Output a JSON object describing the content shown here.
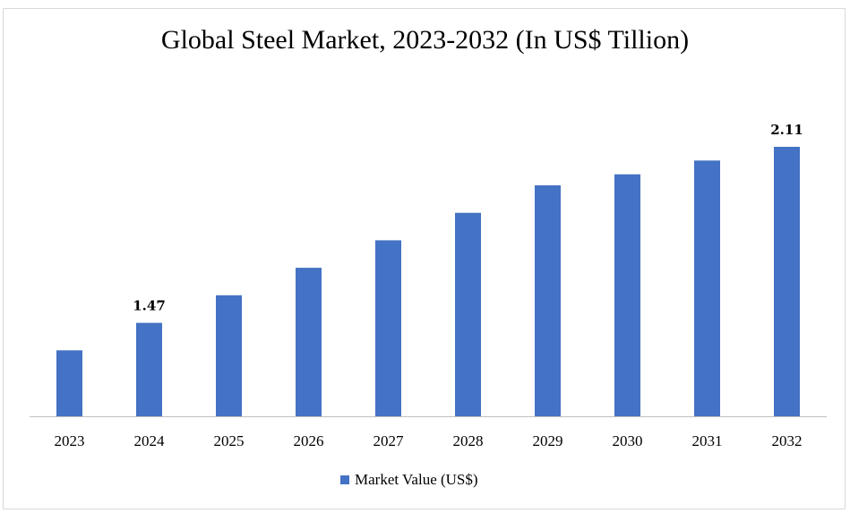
{
  "chart_data": {
    "type": "bar",
    "title": "Global Steel Market, 2023-2032 (In US$ Tillion)",
    "categories": [
      "2023",
      "2024",
      "2025",
      "2026",
      "2027",
      "2028",
      "2029",
      "2030",
      "2031",
      "2032"
    ],
    "series": [
      {
        "name": "Market Value (US$)",
        "values": [
          1.37,
          1.47,
          1.57,
          1.67,
          1.77,
          1.87,
          1.97,
          2.01,
          2.06,
          2.11
        ],
        "color": "#4472c4",
        "data_labels": [
          "",
          "1.47",
          "",
          "",
          "",
          "",
          "",
          "",
          "",
          "2.11"
        ]
      }
    ],
    "ylim": [
      1.13,
      2.2
    ],
    "grid": false,
    "legend_position": "bottom"
  }
}
